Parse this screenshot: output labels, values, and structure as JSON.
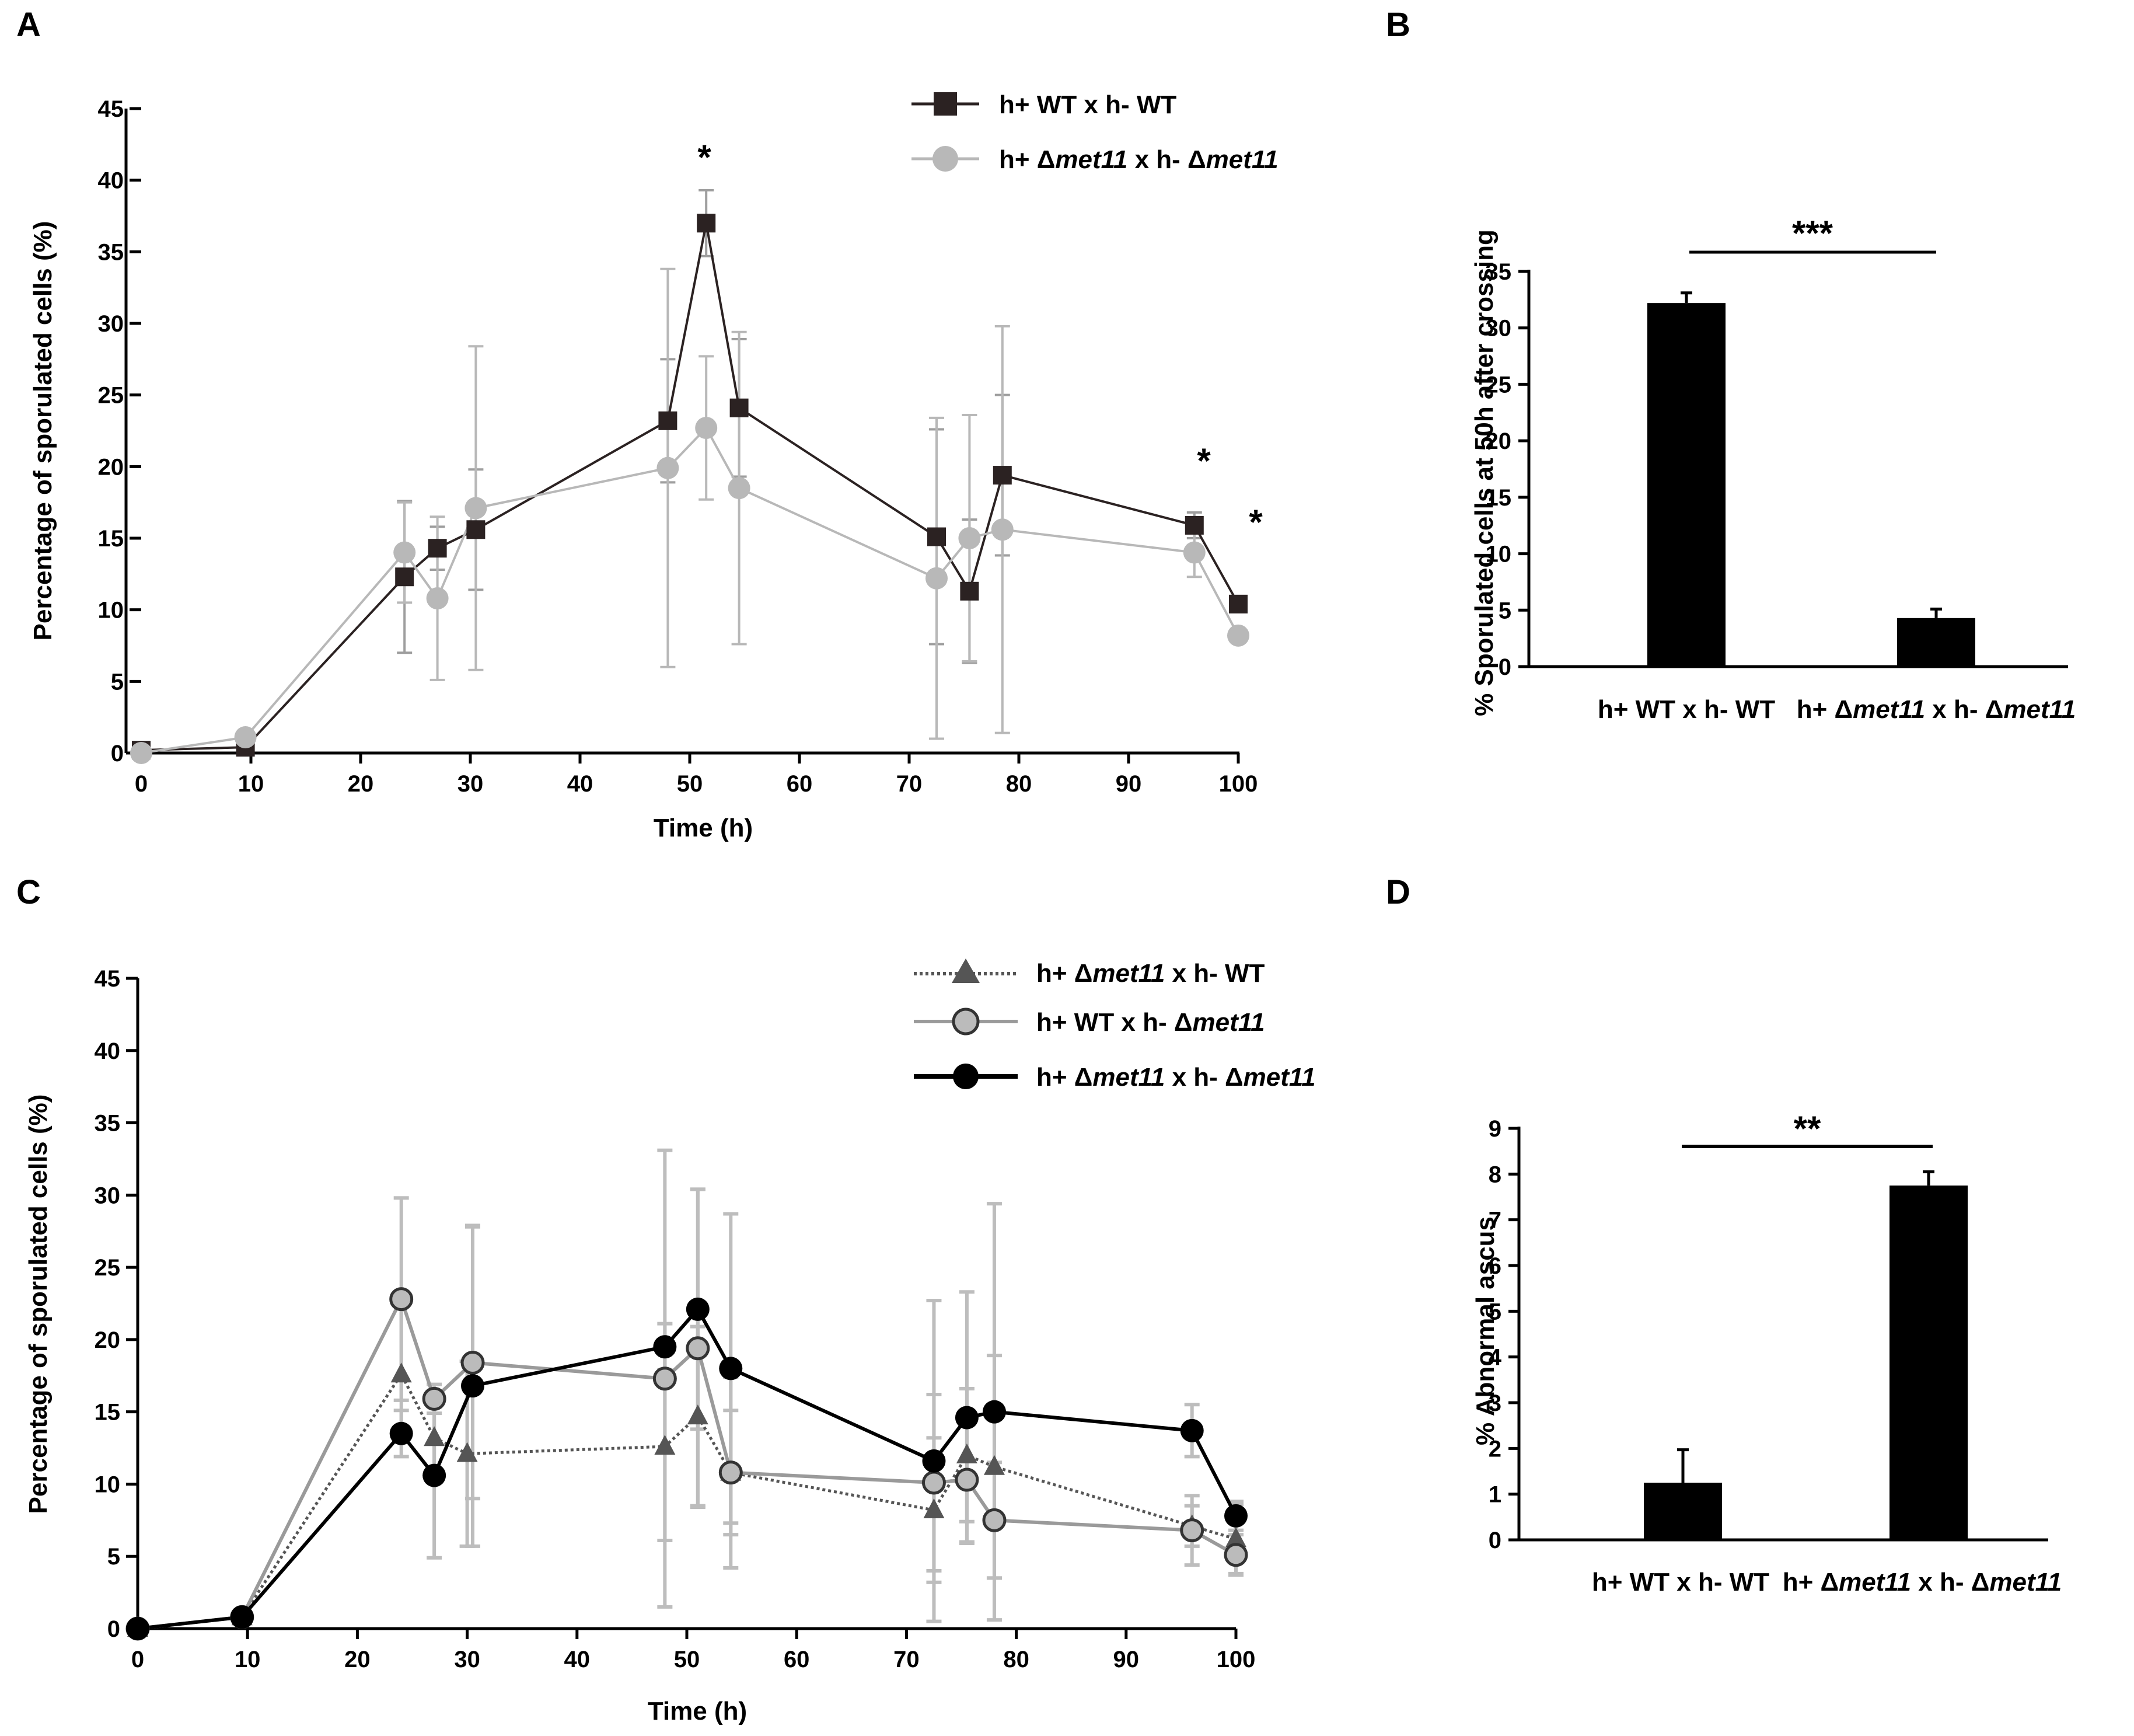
{
  "chart_data": [
    {
      "panel": "A",
      "type": "line",
      "xlabel": "Time (h)",
      "ylabel": "Percentage of sporulated cells (%)",
      "xlim": [
        0,
        100
      ],
      "ylim": [
        0,
        45
      ],
      "xticks": [
        0,
        10,
        20,
        30,
        40,
        50,
        60,
        70,
        80,
        90,
        100
      ],
      "yticks": [
        0,
        5,
        10,
        15,
        20,
        25,
        30,
        35,
        40,
        45
      ],
      "series": [
        {
          "name": "h+ WT x h- WT",
          "marker": "square",
          "color": "#2b2222",
          "x": [
            0,
            9.5,
            24,
            27,
            30.5,
            48,
            51.5,
            54.5,
            72.5,
            75.5,
            78.5,
            96,
            100
          ],
          "y": [
            0.2,
            0.4,
            12.3,
            14.3,
            15.6,
            23.2,
            37.0,
            24.1,
            15.1,
            11.3,
            19.4,
            15.9,
            10.4
          ],
          "err": [
            0.2,
            0.3,
            5.3,
            1.5,
            4.2,
            4.3,
            2.3,
            4.8,
            7.5,
            5.0,
            5.6,
            0.9,
            0.3
          ]
        },
        {
          "name": "h+ Δmet11 x h- Δmet11",
          "marker": "circle",
          "color": "#b8b8b8",
          "x": [
            0,
            9.5,
            24,
            27,
            30.5,
            48,
            51.5,
            54.5,
            72.5,
            75.5,
            78.5,
            96,
            100
          ],
          "y": [
            0,
            1.1,
            14.0,
            10.8,
            17.1,
            19.9,
            22.7,
            18.5,
            12.2,
            15.0,
            15.6,
            14.0,
            8.2
          ],
          "err": [
            0.1,
            0.4,
            3.5,
            5.7,
            11.3,
            13.9,
            5.0,
            10.9,
            11.2,
            8.6,
            14.2,
            1.7,
            0.3
          ]
        }
      ],
      "annotations": [
        {
          "text": "*",
          "x": 51.5
        },
        {
          "text": "*",
          "x": 97
        },
        {
          "text": "*",
          "x": 102
        }
      ]
    },
    {
      "panel": "B",
      "type": "bar",
      "ylabel": "% Sporulated cells at 50h after crossing",
      "ylim": [
        0,
        35
      ],
      "yticks": [
        0,
        5,
        10,
        15,
        20,
        25,
        30,
        35
      ],
      "categories": [
        {
          "pre": "h+ WT x h- WT",
          "g1": "",
          "mid": "",
          "g2": ""
        },
        {
          "pre": "h+ Δ",
          "g1": "met11",
          "mid": " x h- Δ",
          "g2": "met11"
        }
      ],
      "values": [
        32.2,
        4.3
      ],
      "err": [
        0.9,
        0.8
      ],
      "significance": "***"
    },
    {
      "panel": "C",
      "type": "line",
      "xlabel": "Time (h)",
      "ylabel": "Percentage of sporulated cells (%)",
      "xlim": [
        0,
        100
      ],
      "ylim": [
        0,
        45
      ],
      "xticks": [
        0,
        10,
        20,
        30,
        40,
        50,
        60,
        70,
        80,
        90,
        100
      ],
      "yticks": [
        0,
        5,
        10,
        15,
        20,
        25,
        30,
        35,
        40,
        45
      ],
      "series": [
        {
          "name": "h+ Δmet11 x h- WT",
          "marker": "triangle",
          "color": "#555555",
          "line": "dotted",
          "x": [
            0,
            9.5,
            24,
            27,
            30,
            48,
            51,
            54,
            72.5,
            75.5,
            78,
            96,
            100
          ],
          "y": [
            0,
            0.8,
            17.6,
            13.2,
            12.1,
            12.6,
            14.7,
            10.8,
            8.2,
            12.0,
            11.2,
            7.1,
            6.2
          ],
          "err": [
            0.1,
            0.3,
            4.7,
            3.0,
            6.4,
            6.5,
            6.2,
            6.6,
            5.0,
            4.6,
            7.7,
            1.4,
            2.4
          ]
        },
        {
          "name": "h+ WT x h- Δmet11",
          "marker": "circle-outline",
          "color": "#9a9a9a",
          "x": [
            0,
            9.5,
            24,
            27,
            30.5,
            48,
            51,
            54,
            72.5,
            75.5,
            78,
            96,
            100
          ],
          "y": [
            0,
            0.8,
            22.8,
            15.9,
            18.4,
            17.3,
            19.4,
            10.8,
            10.1,
            10.3,
            7.5,
            6.8,
            5.1
          ],
          "err": [
            0.1,
            0.3,
            7.0,
            1.0,
            9.4,
            15.8,
            11.0,
            4.3,
            6.1,
            4.3,
            4.0,
            2.4,
            1.4
          ]
        },
        {
          "name": "h+ Δmet11 x h- Δmet11",
          "marker": "circle-black",
          "color": "#000000",
          "x": [
            0,
            9.5,
            24,
            27,
            30.5,
            48,
            51,
            54,
            72.5,
            75.5,
            78,
            96,
            100
          ],
          "y": [
            0,
            0.8,
            13.5,
            10.6,
            16.8,
            19.5,
            22.1,
            18.0,
            11.6,
            14.6,
            15.0,
            13.7,
            7.8
          ],
          "err": [
            0.1,
            0.3,
            1.6,
            5.7,
            11.1,
            1.6,
            8.3,
            10.7,
            11.1,
            8.7,
            14.4,
            1.8,
            1.0
          ]
        }
      ]
    },
    {
      "panel": "D",
      "type": "bar",
      "ylabel": "% Abnormal ascus",
      "ylim": [
        0,
        9
      ],
      "yticks": [
        0,
        1,
        2,
        3,
        4,
        5,
        6,
        7,
        8,
        9
      ],
      "categories": [
        {
          "pre": "h+ WT x h- WT",
          "g1": "",
          "mid": "",
          "g2": ""
        },
        {
          "pre": "h+ Δ",
          "g1": "met11",
          "mid": " x h- Δ",
          "g2": "met11"
        }
      ],
      "values": [
        1.25,
        7.75
      ],
      "err": [
        0.72,
        0.3
      ],
      "significance": "**"
    }
  ],
  "labels": {
    "panel_a": "A",
    "panel_b": "B",
    "panel_c": "C",
    "panel_d": "D",
    "star": "*",
    "legend_a": [
      {
        "pre": "h+ WT x h- WT",
        "g1": "",
        "mid": "",
        "g2": ""
      },
      {
        "pre": "h+ Δ",
        "g1": "met11",
        "mid": " x h- Δ",
        "g2": "met11"
      }
    ],
    "legend_c": [
      {
        "pre": "h+ Δ",
        "g1": "met11",
        "mid": " x h- WT",
        "g2": ""
      },
      {
        "pre": "h+ WT x h- Δ",
        "g1": "met11",
        "mid": "",
        "g2": ""
      },
      {
        "pre": "h+ Δ",
        "g1": "met11",
        "mid": " x h- Δ",
        "g2": "met11"
      }
    ]
  }
}
